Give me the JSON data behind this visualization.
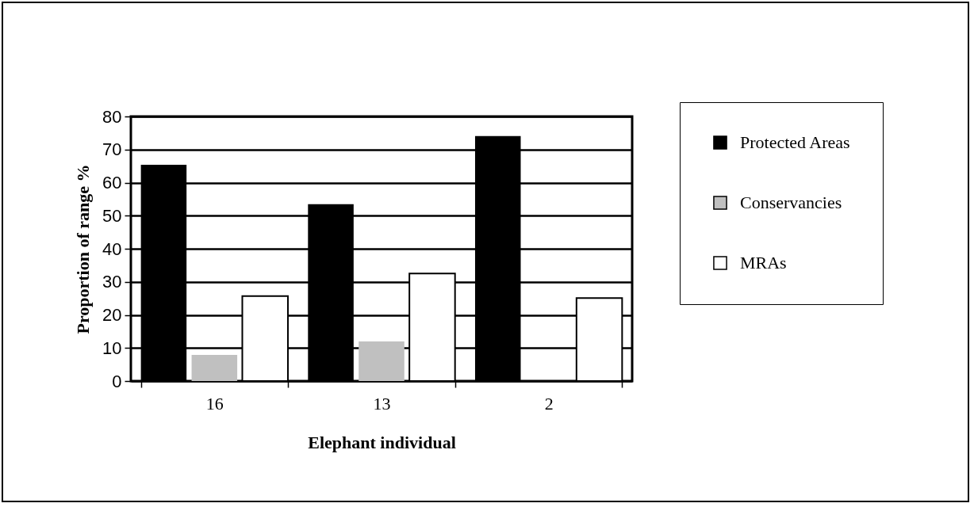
{
  "chart_data": {
    "type": "bar",
    "xlabel": "Elephant individual",
    "ylabel": "Proportion of range %",
    "categories": [
      "16",
      "13",
      "2"
    ],
    "series": [
      {
        "name": "Protected Areas",
        "color": "#000000",
        "values": [
          65.4,
          53.5,
          74.1
        ]
      },
      {
        "name": "Conservancies",
        "color": "#c0c0c0",
        "values": [
          7.9,
          12,
          0
        ]
      },
      {
        "name": "MRAs",
        "color": "#ffffff",
        "values": [
          25.7,
          32.5,
          25.1
        ]
      }
    ],
    "ylim": [
      0,
      80
    ],
    "yticks": [
      0,
      10,
      20,
      30,
      40,
      50,
      60,
      70,
      80
    ],
    "grid": "y",
    "legend": "right"
  }
}
